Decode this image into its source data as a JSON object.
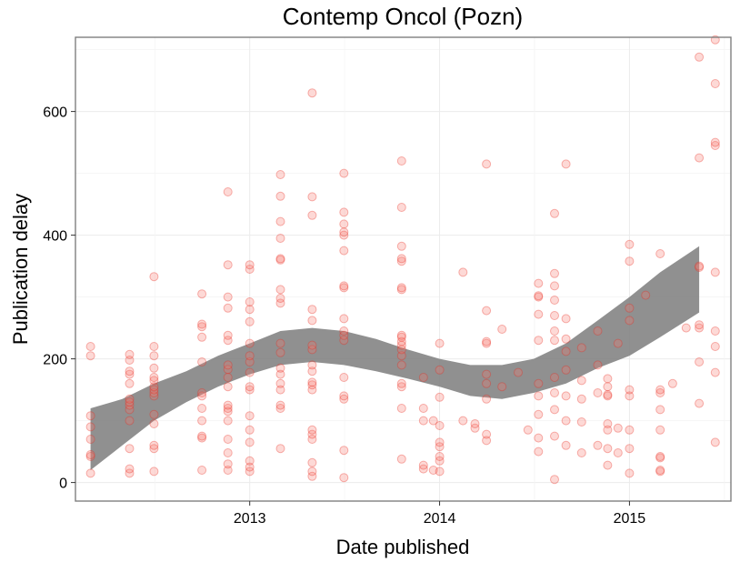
{
  "chart_data": {
    "type": "scatter",
    "title": "Contemp Oncol (Pozn)",
    "xlabel": "Date published",
    "ylabel": "Publication delay",
    "xlim": [
      "2012-02-01",
      "2015-07-15"
    ],
    "ylim": [
      -30,
      720
    ],
    "x_ticks": [
      {
        "label": "2013",
        "value": "2013-01-01"
      },
      {
        "label": "2014",
        "value": "2014-01-01"
      },
      {
        "label": "2015",
        "value": "2015-01-01"
      }
    ],
    "y_ticks": [
      0,
      200,
      400,
      600
    ],
    "grid": true,
    "legend": "none",
    "point_color": "#f8766d",
    "band_color": "#7d7d7d",
    "smooth_band": [
      {
        "x": "2012-03-01",
        "lower": 20,
        "upper": 120
      },
      {
        "x": "2012-05-01",
        "lower": 60,
        "upper": 135
      },
      {
        "x": "2012-07-01",
        "lower": 100,
        "upper": 160
      },
      {
        "x": "2012-09-01",
        "lower": 130,
        "upper": 180
      },
      {
        "x": "2012-11-01",
        "lower": 155,
        "upper": 205
      },
      {
        "x": "2013-01-01",
        "lower": 175,
        "upper": 225
      },
      {
        "x": "2013-03-01",
        "lower": 190,
        "upper": 245
      },
      {
        "x": "2013-05-01",
        "lower": 195,
        "upper": 250
      },
      {
        "x": "2013-07-01",
        "lower": 190,
        "upper": 245
      },
      {
        "x": "2013-09-01",
        "lower": 180,
        "upper": 232
      },
      {
        "x": "2013-11-01",
        "lower": 168,
        "upper": 215
      },
      {
        "x": "2014-01-01",
        "lower": 155,
        "upper": 200
      },
      {
        "x": "2014-03-01",
        "lower": 140,
        "upper": 190
      },
      {
        "x": "2014-05-01",
        "lower": 135,
        "upper": 190
      },
      {
        "x": "2014-07-01",
        "lower": 145,
        "upper": 200
      },
      {
        "x": "2014-09-01",
        "lower": 160,
        "upper": 225
      },
      {
        "x": "2014-11-01",
        "lower": 185,
        "upper": 262
      },
      {
        "x": "2015-01-01",
        "lower": 205,
        "upper": 300
      },
      {
        "x": "2015-03-01",
        "lower": 235,
        "upper": 340
      },
      {
        "x": "2015-05-15",
        "lower": 275,
        "upper": 382
      }
    ],
    "points": [
      {
        "x": "2012-03-01",
        "y": 15
      },
      {
        "x": "2012-03-01",
        "y": 42
      },
      {
        "x": "2012-03-01",
        "y": 45
      },
      {
        "x": "2012-03-01",
        "y": 70
      },
      {
        "x": "2012-03-01",
        "y": 90
      },
      {
        "x": "2012-03-01",
        "y": 108
      },
      {
        "x": "2012-03-01",
        "y": 205
      },
      {
        "x": "2012-03-01",
        "y": 220
      },
      {
        "x": "2012-05-15",
        "y": 15
      },
      {
        "x": "2012-05-15",
        "y": 22
      },
      {
        "x": "2012-05-15",
        "y": 55
      },
      {
        "x": "2012-05-15",
        "y": 100
      },
      {
        "x": "2012-05-15",
        "y": 118
      },
      {
        "x": "2012-05-15",
        "y": 125
      },
      {
        "x": "2012-05-15",
        "y": 130
      },
      {
        "x": "2012-05-15",
        "y": 135
      },
      {
        "x": "2012-05-15",
        "y": 160
      },
      {
        "x": "2012-05-15",
        "y": 175
      },
      {
        "x": "2012-05-15",
        "y": 180
      },
      {
        "x": "2012-05-15",
        "y": 198
      },
      {
        "x": "2012-05-15",
        "y": 207
      },
      {
        "x": "2012-07-01",
        "y": 18
      },
      {
        "x": "2012-07-01",
        "y": 55
      },
      {
        "x": "2012-07-01",
        "y": 60
      },
      {
        "x": "2012-07-01",
        "y": 95
      },
      {
        "x": "2012-07-01",
        "y": 110
      },
      {
        "x": "2012-07-01",
        "y": 140
      },
      {
        "x": "2012-07-01",
        "y": 145
      },
      {
        "x": "2012-07-01",
        "y": 150
      },
      {
        "x": "2012-07-01",
        "y": 155
      },
      {
        "x": "2012-07-01",
        "y": 165
      },
      {
        "x": "2012-07-01",
        "y": 170
      },
      {
        "x": "2012-07-01",
        "y": 185
      },
      {
        "x": "2012-07-01",
        "y": 205
      },
      {
        "x": "2012-07-01",
        "y": 220
      },
      {
        "x": "2012-07-01",
        "y": 333
      },
      {
        "x": "2012-10-01",
        "y": 20
      },
      {
        "x": "2012-10-01",
        "y": 72
      },
      {
        "x": "2012-10-01",
        "y": 75
      },
      {
        "x": "2012-10-01",
        "y": 100
      },
      {
        "x": "2012-10-01",
        "y": 120
      },
      {
        "x": "2012-10-01",
        "y": 140
      },
      {
        "x": "2012-10-01",
        "y": 145
      },
      {
        "x": "2012-10-01",
        "y": 195
      },
      {
        "x": "2012-10-01",
        "y": 235
      },
      {
        "x": "2012-10-01",
        "y": 252
      },
      {
        "x": "2012-10-01",
        "y": 256
      },
      {
        "x": "2012-10-01",
        "y": 305
      },
      {
        "x": "2012-11-20",
        "y": 20
      },
      {
        "x": "2012-11-20",
        "y": 30
      },
      {
        "x": "2012-11-20",
        "y": 48
      },
      {
        "x": "2012-11-20",
        "y": 70
      },
      {
        "x": "2012-11-20",
        "y": 100
      },
      {
        "x": "2012-11-20",
        "y": 115
      },
      {
        "x": "2012-11-20",
        "y": 120
      },
      {
        "x": "2012-11-20",
        "y": 125
      },
      {
        "x": "2012-11-20",
        "y": 155
      },
      {
        "x": "2012-11-20",
        "y": 170
      },
      {
        "x": "2012-11-20",
        "y": 183
      },
      {
        "x": "2012-11-20",
        "y": 190
      },
      {
        "x": "2012-11-20",
        "y": 230
      },
      {
        "x": "2012-11-20",
        "y": 238
      },
      {
        "x": "2012-11-20",
        "y": 282
      },
      {
        "x": "2012-11-20",
        "y": 300
      },
      {
        "x": "2012-11-20",
        "y": 352
      },
      {
        "x": "2012-11-20",
        "y": 470
      },
      {
        "x": "2013-01-01",
        "y": 18
      },
      {
        "x": "2013-01-01",
        "y": 25
      },
      {
        "x": "2013-01-01",
        "y": 35
      },
      {
        "x": "2013-01-01",
        "y": 65
      },
      {
        "x": "2013-01-01",
        "y": 85
      },
      {
        "x": "2013-01-01",
        "y": 108
      },
      {
        "x": "2013-01-01",
        "y": 150
      },
      {
        "x": "2013-01-01",
        "y": 155
      },
      {
        "x": "2013-01-01",
        "y": 178
      },
      {
        "x": "2013-01-01",
        "y": 195
      },
      {
        "x": "2013-01-01",
        "y": 205
      },
      {
        "x": "2013-01-01",
        "y": 225
      },
      {
        "x": "2013-01-01",
        "y": 260
      },
      {
        "x": "2013-01-01",
        "y": 280
      },
      {
        "x": "2013-01-01",
        "y": 292
      },
      {
        "x": "2013-01-01",
        "y": 345
      },
      {
        "x": "2013-01-01",
        "y": 352
      },
      {
        "x": "2013-03-01",
        "y": 55
      },
      {
        "x": "2013-03-01",
        "y": 120
      },
      {
        "x": "2013-03-01",
        "y": 125
      },
      {
        "x": "2013-03-01",
        "y": 150
      },
      {
        "x": "2013-03-01",
        "y": 160
      },
      {
        "x": "2013-03-01",
        "y": 175
      },
      {
        "x": "2013-03-01",
        "y": 185
      },
      {
        "x": "2013-03-01",
        "y": 210
      },
      {
        "x": "2013-03-01",
        "y": 225
      },
      {
        "x": "2013-03-01",
        "y": 290
      },
      {
        "x": "2013-03-01",
        "y": 298
      },
      {
        "x": "2013-03-01",
        "y": 312
      },
      {
        "x": "2013-03-01",
        "y": 360
      },
      {
        "x": "2013-03-01",
        "y": 362
      },
      {
        "x": "2013-03-01",
        "y": 395
      },
      {
        "x": "2013-03-01",
        "y": 422
      },
      {
        "x": "2013-03-01",
        "y": 463
      },
      {
        "x": "2013-03-01",
        "y": 498
      },
      {
        "x": "2013-05-01",
        "y": 10
      },
      {
        "x": "2013-05-01",
        "y": 18
      },
      {
        "x": "2013-05-01",
        "y": 32
      },
      {
        "x": "2013-05-01",
        "y": 70
      },
      {
        "x": "2013-05-01",
        "y": 78
      },
      {
        "x": "2013-05-01",
        "y": 85
      },
      {
        "x": "2013-05-01",
        "y": 150
      },
      {
        "x": "2013-05-01",
        "y": 158
      },
      {
        "x": "2013-05-01",
        "y": 162
      },
      {
        "x": "2013-05-01",
        "y": 180
      },
      {
        "x": "2013-05-01",
        "y": 190
      },
      {
        "x": "2013-05-01",
        "y": 215
      },
      {
        "x": "2013-05-01",
        "y": 222
      },
      {
        "x": "2013-05-01",
        "y": 262
      },
      {
        "x": "2013-05-01",
        "y": 280
      },
      {
        "x": "2013-05-01",
        "y": 432
      },
      {
        "x": "2013-05-01",
        "y": 462
      },
      {
        "x": "2013-05-01",
        "y": 630
      },
      {
        "x": "2013-07-01",
        "y": 8
      },
      {
        "x": "2013-07-01",
        "y": 52
      },
      {
        "x": "2013-07-01",
        "y": 135
      },
      {
        "x": "2013-07-01",
        "y": 140
      },
      {
        "x": "2013-07-01",
        "y": 170
      },
      {
        "x": "2013-07-01",
        "y": 230
      },
      {
        "x": "2013-07-01",
        "y": 238
      },
      {
        "x": "2013-07-01",
        "y": 245
      },
      {
        "x": "2013-07-01",
        "y": 265
      },
      {
        "x": "2013-07-01",
        "y": 315
      },
      {
        "x": "2013-07-01",
        "y": 318
      },
      {
        "x": "2013-07-01",
        "y": 375
      },
      {
        "x": "2013-07-01",
        "y": 400
      },
      {
        "x": "2013-07-01",
        "y": 405
      },
      {
        "x": "2013-07-01",
        "y": 418
      },
      {
        "x": "2013-07-01",
        "y": 437
      },
      {
        "x": "2013-07-01",
        "y": 500
      },
      {
        "x": "2013-10-20",
        "y": 38
      },
      {
        "x": "2013-10-20",
        "y": 120
      },
      {
        "x": "2013-10-20",
        "y": 155
      },
      {
        "x": "2013-10-20",
        "y": 160
      },
      {
        "x": "2013-10-20",
        "y": 190
      },
      {
        "x": "2013-10-20",
        "y": 205
      },
      {
        "x": "2013-10-20",
        "y": 215
      },
      {
        "x": "2013-10-20",
        "y": 222
      },
      {
        "x": "2013-10-20",
        "y": 228
      },
      {
        "x": "2013-10-20",
        "y": 235
      },
      {
        "x": "2013-10-20",
        "y": 238
      },
      {
        "x": "2013-10-20",
        "y": 312
      },
      {
        "x": "2013-10-20",
        "y": 315
      },
      {
        "x": "2013-10-20",
        "y": 358
      },
      {
        "x": "2013-10-20",
        "y": 362
      },
      {
        "x": "2013-10-20",
        "y": 382
      },
      {
        "x": "2013-10-20",
        "y": 445
      },
      {
        "x": "2013-10-20",
        "y": 520
      },
      {
        "x": "2013-12-01",
        "y": 22
      },
      {
        "x": "2013-12-01",
        "y": 28
      },
      {
        "x": "2013-12-01",
        "y": 100
      },
      {
        "x": "2013-12-01",
        "y": 120
      },
      {
        "x": "2013-12-01",
        "y": 170
      },
      {
        "x": "2013-12-20",
        "y": 20
      },
      {
        "x": "2013-12-20",
        "y": 100
      },
      {
        "x": "2014-01-01",
        "y": 18
      },
      {
        "x": "2014-01-01",
        "y": 35
      },
      {
        "x": "2014-01-01",
        "y": 42
      },
      {
        "x": "2014-01-01",
        "y": 58
      },
      {
        "x": "2014-01-01",
        "y": 65
      },
      {
        "x": "2014-01-01",
        "y": 92
      },
      {
        "x": "2014-01-01",
        "y": 138
      },
      {
        "x": "2014-01-01",
        "y": 182
      },
      {
        "x": "2014-01-01",
        "y": 225
      },
      {
        "x": "2014-02-15",
        "y": 100
      },
      {
        "x": "2014-02-15",
        "y": 340
      },
      {
        "x": "2014-03-10",
        "y": 88
      },
      {
        "x": "2014-03-10",
        "y": 95
      },
      {
        "x": "2014-04-01",
        "y": 68
      },
      {
        "x": "2014-04-01",
        "y": 78
      },
      {
        "x": "2014-04-01",
        "y": 135
      },
      {
        "x": "2014-04-01",
        "y": 160
      },
      {
        "x": "2014-04-01",
        "y": 175
      },
      {
        "x": "2014-04-01",
        "y": 225
      },
      {
        "x": "2014-04-01",
        "y": 228
      },
      {
        "x": "2014-04-01",
        "y": 278
      },
      {
        "x": "2014-04-01",
        "y": 515
      },
      {
        "x": "2014-05-01",
        "y": 155
      },
      {
        "x": "2014-05-01",
        "y": 248
      },
      {
        "x": "2014-06-01",
        "y": 178
      },
      {
        "x": "2014-06-20",
        "y": 85
      },
      {
        "x": "2014-07-10",
        "y": 50
      },
      {
        "x": "2014-07-10",
        "y": 72
      },
      {
        "x": "2014-07-10",
        "y": 110
      },
      {
        "x": "2014-07-10",
        "y": 140
      },
      {
        "x": "2014-07-10",
        "y": 160
      },
      {
        "x": "2014-07-10",
        "y": 230
      },
      {
        "x": "2014-07-10",
        "y": 272
      },
      {
        "x": "2014-07-10",
        "y": 300
      },
      {
        "x": "2014-07-10",
        "y": 302
      },
      {
        "x": "2014-07-10",
        "y": 322
      },
      {
        "x": "2014-08-10",
        "y": 5
      },
      {
        "x": "2014-08-10",
        "y": 75
      },
      {
        "x": "2014-08-10",
        "y": 118
      },
      {
        "x": "2014-08-10",
        "y": 145
      },
      {
        "x": "2014-08-10",
        "y": 170
      },
      {
        "x": "2014-08-10",
        "y": 230
      },
      {
        "x": "2014-08-10",
        "y": 245
      },
      {
        "x": "2014-08-10",
        "y": 270
      },
      {
        "x": "2014-08-10",
        "y": 295
      },
      {
        "x": "2014-08-10",
        "y": 318
      },
      {
        "x": "2014-08-10",
        "y": 338
      },
      {
        "x": "2014-08-10",
        "y": 435
      },
      {
        "x": "2014-09-01",
        "y": 60
      },
      {
        "x": "2014-09-01",
        "y": 100
      },
      {
        "x": "2014-09-01",
        "y": 140
      },
      {
        "x": "2014-09-01",
        "y": 182
      },
      {
        "x": "2014-09-01",
        "y": 212
      },
      {
        "x": "2014-09-01",
        "y": 232
      },
      {
        "x": "2014-09-01",
        "y": 265
      },
      {
        "x": "2014-09-01",
        "y": 515
      },
      {
        "x": "2014-10-01",
        "y": 48
      },
      {
        "x": "2014-10-01",
        "y": 98
      },
      {
        "x": "2014-10-01",
        "y": 135
      },
      {
        "x": "2014-10-01",
        "y": 165
      },
      {
        "x": "2014-10-01",
        "y": 218
      },
      {
        "x": "2014-11-01",
        "y": 60
      },
      {
        "x": "2014-11-01",
        "y": 145
      },
      {
        "x": "2014-11-01",
        "y": 190
      },
      {
        "x": "2014-11-01",
        "y": 245
      },
      {
        "x": "2014-11-20",
        "y": 28
      },
      {
        "x": "2014-11-20",
        "y": 55
      },
      {
        "x": "2014-11-20",
        "y": 85
      },
      {
        "x": "2014-11-20",
        "y": 95
      },
      {
        "x": "2014-11-20",
        "y": 140
      },
      {
        "x": "2014-11-20",
        "y": 142
      },
      {
        "x": "2014-11-20",
        "y": 155
      },
      {
        "x": "2014-11-20",
        "y": 168
      },
      {
        "x": "2014-12-10",
        "y": 48
      },
      {
        "x": "2014-12-10",
        "y": 88
      },
      {
        "x": "2014-12-10",
        "y": 225
      },
      {
        "x": "2015-01-01",
        "y": 15
      },
      {
        "x": "2015-01-01",
        "y": 55
      },
      {
        "x": "2015-01-01",
        "y": 85
      },
      {
        "x": "2015-01-01",
        "y": 140
      },
      {
        "x": "2015-01-01",
        "y": 150
      },
      {
        "x": "2015-01-01",
        "y": 262
      },
      {
        "x": "2015-01-01",
        "y": 282
      },
      {
        "x": "2015-01-01",
        "y": 358
      },
      {
        "x": "2015-01-01",
        "y": 385
      },
      {
        "x": "2015-02-01",
        "y": 303
      },
      {
        "x": "2015-03-01",
        "y": 18
      },
      {
        "x": "2015-03-01",
        "y": 20
      },
      {
        "x": "2015-03-01",
        "y": 40
      },
      {
        "x": "2015-03-01",
        "y": 42
      },
      {
        "x": "2015-03-01",
        "y": 85
      },
      {
        "x": "2015-03-01",
        "y": 118
      },
      {
        "x": "2015-03-01",
        "y": 145
      },
      {
        "x": "2015-03-01",
        "y": 150
      },
      {
        "x": "2015-03-01",
        "y": 370
      },
      {
        "x": "2015-03-25",
        "y": 160
      },
      {
        "x": "2015-04-20",
        "y": 250
      },
      {
        "x": "2015-05-15",
        "y": 128
      },
      {
        "x": "2015-05-15",
        "y": 195
      },
      {
        "x": "2015-05-15",
        "y": 250
      },
      {
        "x": "2015-05-15",
        "y": 255
      },
      {
        "x": "2015-05-15",
        "y": 348
      },
      {
        "x": "2015-05-15",
        "y": 350
      },
      {
        "x": "2015-05-15",
        "y": 525
      },
      {
        "x": "2015-05-15",
        "y": 688
      },
      {
        "x": "2015-06-15",
        "y": 65
      },
      {
        "x": "2015-06-15",
        "y": 178
      },
      {
        "x": "2015-06-15",
        "y": 220
      },
      {
        "x": "2015-06-15",
        "y": 245
      },
      {
        "x": "2015-06-15",
        "y": 340
      },
      {
        "x": "2015-06-15",
        "y": 545
      },
      {
        "x": "2015-06-15",
        "y": 550
      },
      {
        "x": "2015-06-15",
        "y": 645
      },
      {
        "x": "2015-06-15",
        "y": 716
      }
    ]
  }
}
